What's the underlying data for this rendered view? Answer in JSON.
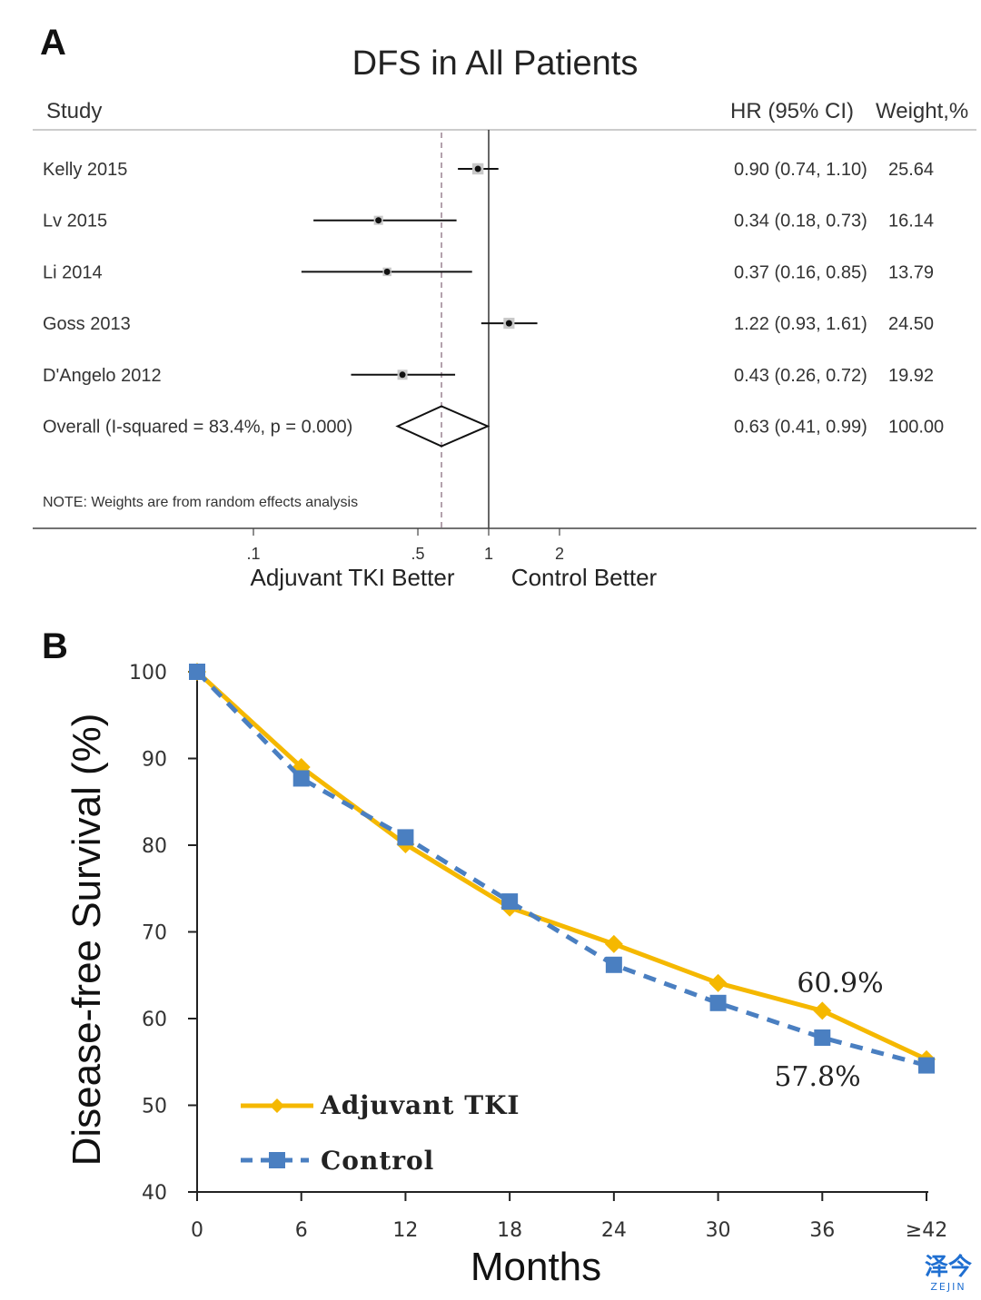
{
  "watermark": {
    "cn": "泽今",
    "en": "ZEJIN"
  },
  "chart_data": [
    {
      "type": "forest",
      "panel_label": "A",
      "title": "DFS in All Patients",
      "column_headers": {
        "study": "Study",
        "hr": "HR (95% CI)",
        "weight": "Weight,%"
      },
      "studies": [
        {
          "name": "Kelly 2015",
          "hr": 0.9,
          "lo": 0.74,
          "hi": 1.1,
          "hr_text": "0.90 (0.74, 1.10)",
          "weight": "25.64"
        },
        {
          "name": "Lv 2015",
          "hr": 0.34,
          "lo": 0.18,
          "hi": 0.73,
          "hr_text": "0.34 (0.18, 0.73)",
          "weight": "16.14"
        },
        {
          "name": "Li 2014",
          "hr": 0.37,
          "lo": 0.16,
          "hi": 0.85,
          "hr_text": "0.37 (0.16, 0.85)",
          "weight": "13.79"
        },
        {
          "name": "Goss 2013",
          "hr": 1.22,
          "lo": 0.93,
          "hi": 1.61,
          "hr_text": "1.22 (0.93, 1.61)",
          "weight": "24.50"
        },
        {
          "name": "D'Angelo 2012",
          "hr": 0.43,
          "lo": 0.26,
          "hi": 0.72,
          "hr_text": "0.43 (0.26, 0.72)",
          "weight": "19.92"
        }
      ],
      "overall": {
        "name": "Overall  (I-squared = 83.4%, p = 0.000)",
        "hr": 0.63,
        "lo": 0.41,
        "hi": 0.99,
        "hr_text": "0.63 (0.41, 0.99)",
        "weight": "100.00"
      },
      "note": "NOTE: Weights are from random effects analysis",
      "x_scale": "log",
      "x_ticks": [
        {
          "value": 0.1,
          "label": ".1"
        },
        {
          "value": 0.5,
          "label": ".5"
        },
        {
          "value": 1,
          "label": "1"
        },
        {
          "value": 2,
          "label": "2"
        }
      ],
      "null_line": 1,
      "x_direction_labels": {
        "left": "Adjuvant TKI Better",
        "right": "Control Better"
      }
    },
    {
      "type": "line",
      "panel_label": "B",
      "title": "",
      "xlabel": "Months",
      "ylabel": "Disease-free Survival (%)",
      "x": [
        "0",
        "6",
        "12",
        "18",
        "24",
        "30",
        "36",
        "≥42"
      ],
      "ylim": [
        40,
        100
      ],
      "y_ticks": [
        40,
        50,
        60,
        70,
        80,
        90,
        100
      ],
      "grid": false,
      "legend_position": "bottom-left",
      "series": [
        {
          "name": "Adjuvant TKI",
          "color": "#f5b800",
          "marker": "diamond",
          "line": "solid",
          "values": [
            100,
            89.0,
            80.1,
            72.8,
            68.6,
            64.1,
            60.9,
            55.3
          ]
        },
        {
          "name": "Control",
          "color": "#4a7fc1",
          "marker": "square",
          "line": "dashed",
          "values": [
            100,
            87.7,
            80.9,
            73.5,
            66.2,
            61.8,
            57.8,
            54.6
          ]
        }
      ],
      "annotations": [
        {
          "text": "60.9%",
          "series": "Adjuvant TKI",
          "x": "36"
        },
        {
          "text": "57.8%",
          "series": "Control",
          "x": "36"
        }
      ]
    }
  ]
}
